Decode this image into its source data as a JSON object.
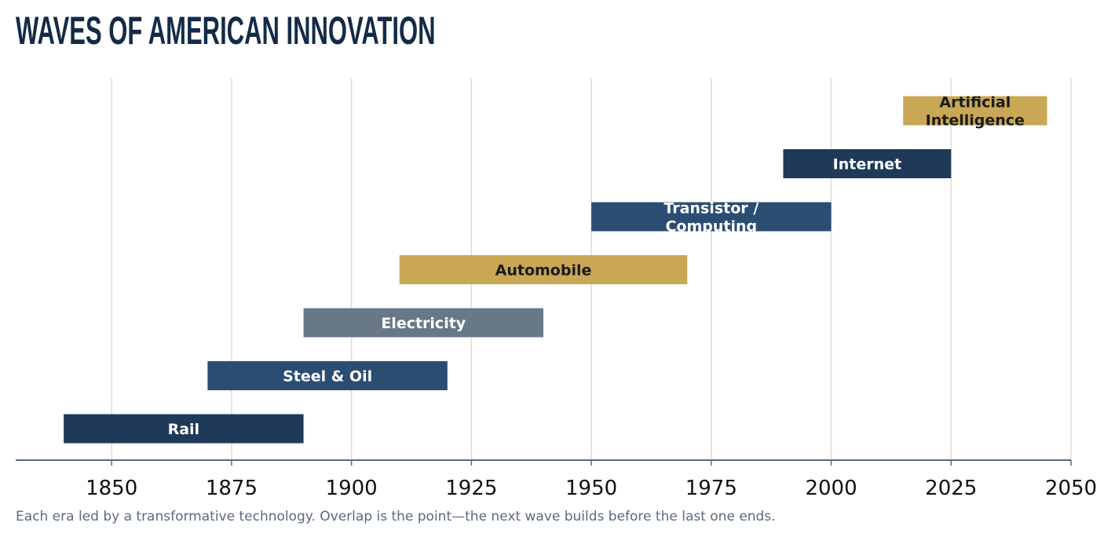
{
  "title": "WAVES OF AMERICAN INNOVATION",
  "caption": "Each era led by a transformative technology. Overlap is the point—the next wave builds before the last one ends.",
  "colors": {
    "navy": "#1f3a58",
    "blue": "#2c4d72",
    "slate": "#687888",
    "gold": "#c9a755",
    "grid": "#deddd2",
    "axis": "#5b6b7d",
    "dark_text": "#1a1a1a",
    "light_text": "#ffffff"
  },
  "chart_data": {
    "type": "gantt",
    "xlim": [
      1830,
      2050
    ],
    "x_ticks": [
      "1850",
      "1875",
      "1900",
      "1925",
      "1950",
      "1975",
      "2000",
      "2025",
      "2050"
    ],
    "grid": "vertical",
    "bars": [
      {
        "label": "Rail",
        "start": 1840,
        "end": 1890,
        "color": "#1f3a58",
        "text_color": "#ffffff"
      },
      {
        "label": "Steel & Oil",
        "start": 1870,
        "end": 1920,
        "color": "#2c4d72",
        "text_color": "#ffffff"
      },
      {
        "label": "Electricity",
        "start": 1890,
        "end": 1940,
        "color": "#687888",
        "text_color": "#ffffff"
      },
      {
        "label": "Automobile",
        "start": 1910,
        "end": 1970,
        "color": "#c9a755",
        "text_color": "#1a1a1a"
      },
      {
        "label": "Transistor /\nComputing",
        "start": 1950,
        "end": 2000,
        "color": "#2c4d72",
        "text_color": "#ffffff"
      },
      {
        "label": "Internet",
        "start": 1990,
        "end": 2025,
        "color": "#1f3a58",
        "text_color": "#ffffff"
      },
      {
        "label": "Artificial\nIntelligence",
        "start": 2015,
        "end": 2045,
        "color": "#c9a755",
        "text_color": "#1a1a1a"
      }
    ]
  }
}
